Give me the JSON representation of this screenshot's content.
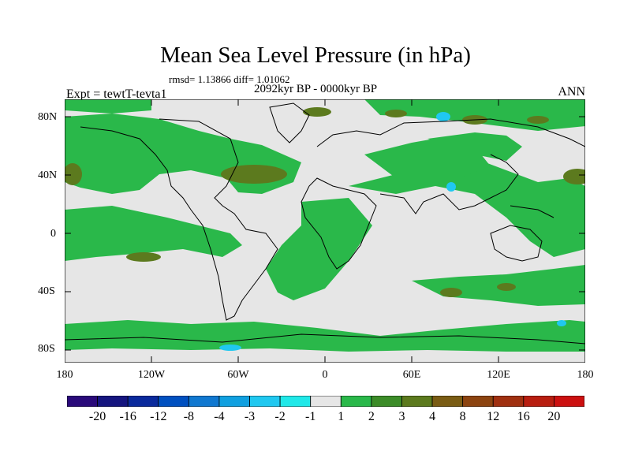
{
  "title": "Mean Sea Level Pressure (in hPa)",
  "stats_line": "rmsd= 1.13866 diff= 1.01062",
  "period": "2092kyr BP - 0000kyr BP",
  "experiment": "Expt = tewtT-tevta1",
  "season": "ANN",
  "lat_labels": [
    "80N",
    "40N",
    "0",
    "40S",
    "80S"
  ],
  "lon_labels": [
    "180",
    "120W",
    "60W",
    "0",
    "60E",
    "120E",
    "180"
  ],
  "colorbar": {
    "colors": [
      "#2a0a7a",
      "#15157f",
      "#0a2a9c",
      "#0050c0",
      "#1078d0",
      "#10a0e0",
      "#20c8f0",
      "#20e8e8",
      "#e6e6e6",
      "#2ab84a",
      "#3c8c28",
      "#5c7a1e",
      "#7a5c14",
      "#8c4410",
      "#a03010",
      "#b81e10",
      "#cc1010"
    ],
    "labels": [
      "-20",
      "-16",
      "-12",
      "-8",
      "-4",
      "-3",
      "-2",
      "-1",
      "1",
      "2",
      "3",
      "4",
      "8",
      "12",
      "16",
      "20"
    ]
  },
  "map": {
    "land_fill": "#e6e6e6",
    "positive_fill": "#2ab84a",
    "strong_fill": "#5c7a1e",
    "negative_fill": "#20c8f0"
  }
}
